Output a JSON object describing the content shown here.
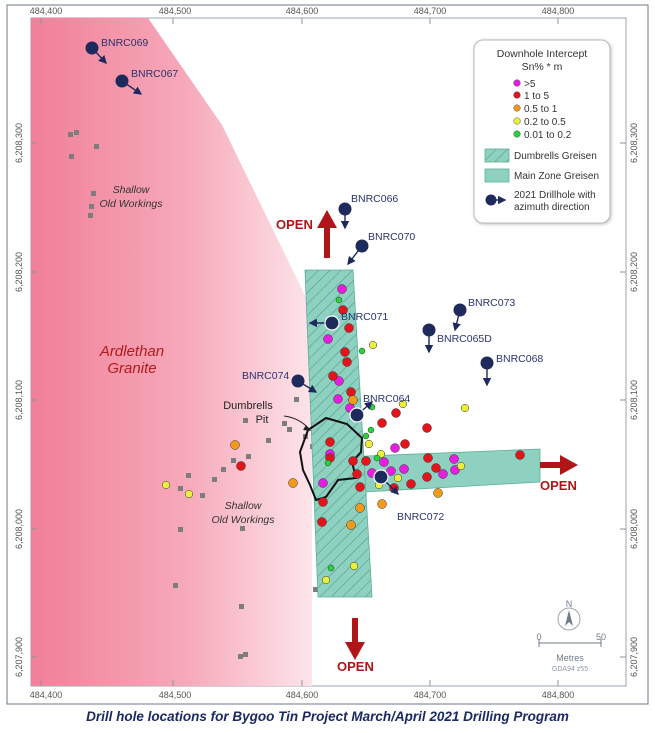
{
  "caption": "Drill hole locations for Bygoo Tin Project March/April 2021 Drilling Program",
  "colors": {
    "granite": "#f4a3b3",
    "greisen": "#8fd1c0",
    "drillhole": "#1f2a5c",
    "open_arrow": "#b11518",
    "label": "#2a3470"
  },
  "axes": {
    "easting_top": [
      "484,400",
      "484,500",
      "484,600",
      "484,700",
      "484,800"
    ],
    "easting_bottom": [
      "484,400",
      "484,500",
      "484,600",
      "484,700",
      "484,800"
    ],
    "northing_left": [
      "6,208,300",
      "6,208,200",
      "6,208,100",
      "6,208,000",
      "6,207,900"
    ],
    "northing_right": [
      "6,208,300",
      "6,208,200",
      "6,208,100",
      "6,208,000",
      "6,207,900"
    ]
  },
  "map_labels": {
    "granite_line1": "Ardlethan",
    "granite_line2": "Granite",
    "workings_top_line1": "Shallow",
    "workings_top_line2": "Old Workings",
    "workings_bottom_line1": "Shallow",
    "workings_bottom_line2": "Old Workings",
    "pit_line1": "Dumbrells",
    "pit_line2": "Pit",
    "open_north": "OPEN",
    "open_east": "OPEN",
    "open_south": "OPEN"
  },
  "drillholes": [
    {
      "id": "BNRC069"
    },
    {
      "id": "BNRC067"
    },
    {
      "id": "BNRC066"
    },
    {
      "id": "BNRC070"
    },
    {
      "id": "BNRC071"
    },
    {
      "id": "BNRC073"
    },
    {
      "id": "BNRC065D"
    },
    {
      "id": "BNRC068"
    },
    {
      "id": "BNRC074"
    },
    {
      "id": "BNRC064"
    },
    {
      "id": "BNRC072"
    }
  ],
  "legend": {
    "title": "Downhole Intercept",
    "subtitle": "Sn% * m",
    "classes": [
      {
        "label": ">5",
        "color": "#e51ee0"
      },
      {
        "label": "1 to 5",
        "color": "#e3151b"
      },
      {
        "label": "0.5 to 1",
        "color": "#f39a1b"
      },
      {
        "label": "0.2 to 0.5",
        "color": "#e9ef3a"
      },
      {
        "label": "0.01 to 0.2",
        "color": "#29d23a"
      }
    ],
    "dumbrells_greisen": "Dumbrells Greisen",
    "main_zone_greisen": "Main Zone Greisen",
    "drillhole_line1": "2021 Drillhole with",
    "drillhole_line2": "azimuth direction"
  },
  "scale_bar": {
    "north": "N",
    "zero": "0",
    "fifty": "50",
    "unit": "Metres",
    "datum": "GDA94 z55"
  }
}
